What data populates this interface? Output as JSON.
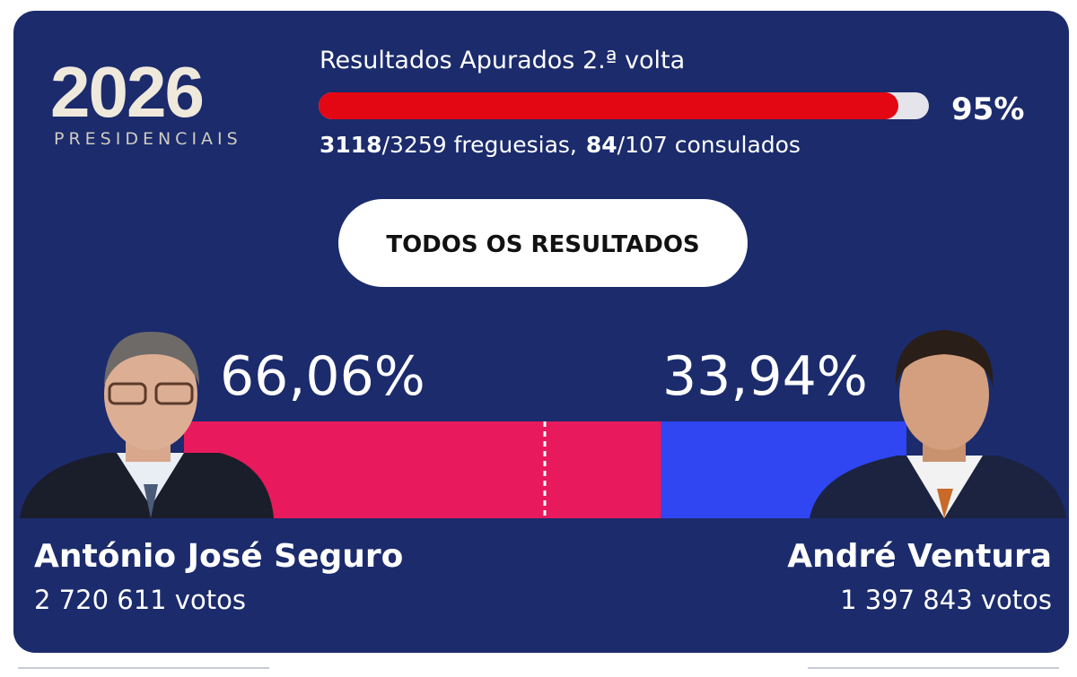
{
  "header": {
    "logo_year": "2026",
    "logo_subtitle": "PRESIDENCIAIS"
  },
  "progress": {
    "title": "Resultados Apurados 2.ª volta",
    "value": 95,
    "value_label": "95%",
    "parishes_counted": "3118",
    "parishes_total": "/3259 freguesias,",
    "consulates_counted": "84",
    "consulates_total": "/107 consulados"
  },
  "button": {
    "label": "TODOS OS RESULTADOS"
  },
  "candidates": [
    {
      "name": "António José Seguro",
      "votes": "2 720 611 votos",
      "percent": 66.06,
      "percent_label": "66,06%",
      "color": "#e8195c"
    },
    {
      "name": "André Ventura",
      "votes": "1 397 843 votos",
      "percent": 33.94,
      "percent_label": "33,94%",
      "color": "#2f46f2"
    }
  ]
}
